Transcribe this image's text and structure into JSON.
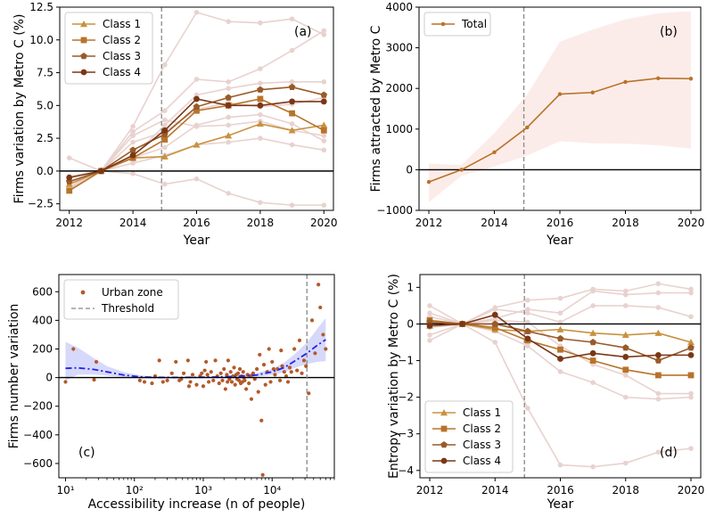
{
  "chart_data": [
    {
      "id": "a",
      "type": "line",
      "panel_label": "(a)",
      "xlabel": "Year",
      "ylabel": "Firms variation by Metro C (%)",
      "xlim": [
        2011.7,
        2020.3
      ],
      "ylim": [
        -3.0,
        12.5
      ],
      "x_ticks": [
        2012,
        2014,
        2016,
        2018,
        2020
      ],
      "y_ticks": [
        -2.5,
        0.0,
        2.5,
        5.0,
        7.5,
        10.0,
        12.5
      ],
      "y_tick_labels": [
        "−2.5",
        "0.0",
        "2.5",
        "5.0",
        "7.5",
        "10.0",
        "12.5"
      ],
      "threshold_x": 2014.9,
      "zero_line": true,
      "legend_position": "upper-left",
      "years": [
        2012,
        2013,
        2014,
        2015,
        2016,
        2017,
        2018,
        2019,
        2020
      ],
      "series": [
        {
          "name": "Class 1",
          "marker": "triangle",
          "color": "#c8923f",
          "values": [
            -1.0,
            0.0,
            1.0,
            1.1,
            2.0,
            2.7,
            3.6,
            3.1,
            3.5
          ]
        },
        {
          "name": "Class 2",
          "marker": "square",
          "color": "#b8732a",
          "values": [
            -1.5,
            0.0,
            1.0,
            2.4,
            4.6,
            5.0,
            5.5,
            4.4,
            3.1
          ]
        },
        {
          "name": "Class 3",
          "marker": "pentagon",
          "color": "#9a5a28",
          "values": [
            -0.8,
            0.0,
            1.6,
            2.8,
            4.9,
            5.6,
            6.2,
            6.4,
            5.8
          ]
        },
        {
          "name": "Class 4",
          "marker": "circle",
          "color": "#7a3715",
          "values": [
            -0.5,
            0.0,
            1.2,
            3.1,
            5.5,
            5.0,
            5.0,
            5.3,
            5.3
          ]
        }
      ],
      "background_series_color": "#e8d2cf",
      "background_series": [
        [
          -1.2,
          0.0,
          3.4,
          8.1,
          12.1,
          11.4,
          11.3,
          11.6,
          10.4
        ],
        [
          -1.4,
          0.0,
          3.0,
          4.6,
          7.0,
          6.8,
          7.8,
          9.2,
          10.7
        ],
        [
          1.0,
          0.0,
          1.1,
          3.5,
          5.8,
          6.3,
          6.7,
          6.8,
          6.8
        ],
        [
          -1.3,
          0.0,
          2.2,
          3.0,
          4.7,
          5.2,
          4.9,
          5.1,
          5.6
        ],
        [
          -0.9,
          0.0,
          1.0,
          1.8,
          3.5,
          4.1,
          4.3,
          3.6,
          2.3
        ],
        [
          -1.0,
          0.0,
          2.7,
          3.9,
          3.4,
          3.5,
          3.8,
          3.1,
          2.7
        ],
        [
          -0.5,
          0.0,
          0.6,
          1.2,
          2.0,
          2.2,
          2.5,
          2.0,
          1.6
        ],
        [
          -0.4,
          0.0,
          -0.2,
          -1.0,
          -0.6,
          -1.7,
          -2.4,
          -2.6,
          -2.6
        ]
      ]
    },
    {
      "id": "b",
      "type": "line",
      "panel_label": "(b)",
      "xlabel": "Year",
      "ylabel": "Firms attracted by Metro C",
      "xlim": [
        2011.7,
        2020.3
      ],
      "ylim": [
        -1000,
        4000
      ],
      "x_ticks": [
        2012,
        2014,
        2016,
        2018,
        2020
      ],
      "y_ticks": [
        -1000,
        0,
        1000,
        2000,
        3000,
        4000
      ],
      "y_tick_labels": [
        "−1000",
        "0",
        "1000",
        "2000",
        "3000",
        "4000"
      ],
      "threshold_x": 2014.9,
      "zero_line": true,
      "legend_position": "upper-left",
      "years": [
        2012,
        2013,
        2014,
        2015,
        2016,
        2017,
        2018,
        2019,
        2020
      ],
      "series": [
        {
          "name": "Total",
          "marker": "circle",
          "color": "#b8732a",
          "values": [
            -300,
            0,
            430,
            1040,
            1860,
            1900,
            2160,
            2250,
            2240
          ]
        }
      ],
      "band": {
        "color": "#fbe7e4",
        "lower": [
          -800,
          -150,
          80,
          350,
          700,
          650,
          640,
          600,
          520
        ],
        "upper": [
          150,
          120,
          900,
          1850,
          3150,
          3450,
          3700,
          3850,
          3900
        ]
      }
    },
    {
      "id": "c",
      "type": "scatter",
      "panel_label": "(c)",
      "xlabel": "Accessibility increase (n of people)",
      "ylabel": "Firms number variation",
      "x_scale": "log",
      "xlim": [
        8,
        80000
      ],
      "ylim": [
        -700,
        720
      ],
      "x_ticks": [
        10,
        100,
        1000,
        10000
      ],
      "x_tick_labels": [
        "10¹",
        "10²",
        "10³",
        "10⁴"
      ],
      "y_ticks": [
        -600,
        -400,
        -200,
        0,
        200,
        400,
        600
      ],
      "y_tick_labels": [
        "−600",
        "−400",
        "−200",
        "0",
        "200",
        "400",
        "600"
      ],
      "threshold_x": 32000,
      "zero_line": true,
      "legend_position": "upper-left",
      "legend": [
        "Urban zone",
        "Threshold"
      ],
      "point_color": "#b5592a",
      "fit_color": "#2222ee",
      "band_color": "#c9ccf8",
      "points": [
        [
          10,
          -30
        ],
        [
          13,
          200
        ],
        [
          26,
          -15
        ],
        [
          28,
          110
        ],
        [
          120,
          -20
        ],
        [
          140,
          -30
        ],
        [
          180,
          -40
        ],
        [
          200,
          10
        ],
        [
          230,
          120
        ],
        [
          260,
          -30
        ],
        [
          300,
          -20
        ],
        [
          350,
          30
        ],
        [
          400,
          110
        ],
        [
          450,
          -20
        ],
        [
          480,
          -10
        ],
        [
          520,
          30
        ],
        [
          600,
          120
        ],
        [
          650,
          -30
        ],
        [
          700,
          20
        ],
        [
          800,
          -50
        ],
        [
          900,
          10
        ],
        [
          950,
          30
        ],
        [
          1000,
          -60
        ],
        [
          1100,
          110
        ],
        [
          1150,
          20
        ],
        [
          1200,
          -30
        ],
        [
          1300,
          40
        ],
        [
          1400,
          -20
        ],
        [
          1500,
          120
        ],
        [
          1600,
          10
        ],
        [
          1700,
          -40
        ],
        [
          1800,
          30
        ],
        [
          1900,
          -20
        ],
        [
          2000,
          60
        ],
        [
          2100,
          -80
        ],
        [
          2200,
          20
        ],
        [
          2300,
          120
        ],
        [
          2400,
          -10
        ],
        [
          2500,
          40
        ],
        [
          2600,
          -30
        ],
        [
          2700,
          10
        ],
        [
          2800,
          70
        ],
        [
          2900,
          -50
        ],
        [
          3000,
          20
        ],
        [
          3100,
          -10
        ],
        [
          3200,
          30
        ],
        [
          3300,
          -20
        ],
        [
          3400,
          60
        ],
        [
          3500,
          -40
        ],
        [
          3600,
          10
        ],
        [
          3700,
          -30
        ],
        [
          3800,
          40
        ],
        [
          3900,
          0
        ],
        [
          4000,
          -20
        ],
        [
          4200,
          -80
        ],
        [
          4400,
          20
        ],
        [
          4600,
          -40
        ],
        [
          4800,
          10
        ],
        [
          5000,
          -150
        ],
        [
          5300,
          30
        ],
        [
          5600,
          -10
        ],
        [
          6000,
          60
        ],
        [
          6300,
          -100
        ],
        [
          6600,
          160
        ],
        [
          7000,
          -300
        ],
        [
          7300,
          -680
        ],
        [
          7600,
          90
        ],
        [
          8000,
          -50
        ],
        [
          8500,
          40
        ],
        [
          9000,
          200
        ],
        [
          9500,
          -30
        ],
        [
          10000,
          110
        ],
        [
          10500,
          60
        ],
        [
          11000,
          20
        ],
        [
          12000,
          60
        ],
        [
          13000,
          -20
        ],
        [
          14000,
          80
        ],
        [
          15000,
          40
        ],
        [
          16000,
          10
        ],
        [
          17000,
          -30
        ],
        [
          18000,
          70
        ],
        [
          19000,
          40
        ],
        [
          21000,
          200
        ],
        [
          23000,
          50
        ],
        [
          25000,
          260
        ],
        [
          27000,
          30
        ],
        [
          29000,
          120
        ],
        [
          31000,
          80
        ],
        [
          34000,
          -110
        ],
        [
          38000,
          400
        ],
        [
          42000,
          170
        ],
        [
          47000,
          650
        ],
        [
          50000,
          490
        ],
        [
          55000,
          300
        ],
        [
          60000,
          200
        ],
        [
          13500,
          190
        ],
        [
          5200,
          20
        ],
        [
          2250,
          -30
        ],
        [
          1050,
          50
        ],
        [
          620,
          -60
        ]
      ],
      "fit_x": [
        10,
        15,
        25,
        40,
        70,
        120,
        200,
        400,
        800,
        1500,
        3000,
        6000,
        10000,
        15000,
        22000,
        32000,
        45000,
        60000
      ],
      "fit_y": [
        65,
        68,
        58,
        40,
        18,
        5,
        1,
        1,
        2,
        4,
        8,
        18,
        40,
        70,
        120,
        170,
        225,
        265
      ],
      "band_lower": [
        -20,
        20,
        22,
        14,
        3,
        -6,
        -6,
        -4,
        -3,
        -2,
        0,
        5,
        18,
        38,
        70,
        95,
        110,
        115
      ],
      "band_upper": [
        250,
        210,
        140,
        80,
        38,
        16,
        8,
        6,
        7,
        10,
        17,
        32,
        62,
        105,
        170,
        245,
        340,
        415
      ]
    },
    {
      "id": "d",
      "type": "line",
      "panel_label": "(d)",
      "xlabel": "Year",
      "ylabel": "Entropy variation by Metro C (%)",
      "xlim": [
        2011.7,
        2020.3
      ],
      "ylim": [
        -4.2,
        1.35
      ],
      "x_ticks": [
        2012,
        2014,
        2016,
        2018,
        2020
      ],
      "y_ticks": [
        -4,
        -3,
        -2,
        -1,
        0,
        1
      ],
      "y_tick_labels": [
        "−4",
        "−3",
        "−2",
        "−1",
        "0",
        "1"
      ],
      "threshold_x": 2014.9,
      "zero_line": true,
      "legend_position": "lower-left",
      "years": [
        2012,
        2013,
        2014,
        2015,
        2016,
        2017,
        2018,
        2019,
        2020
      ],
      "series": [
        {
          "name": "Class 1",
          "marker": "triangle",
          "color": "#c8923f",
          "values": [
            -0.05,
            0.0,
            -0.15,
            -0.2,
            -0.15,
            -0.25,
            -0.3,
            -0.25,
            -0.5
          ]
        },
        {
          "name": "Class 2",
          "marker": "square",
          "color": "#b8732a",
          "values": [
            0.1,
            0.0,
            -0.1,
            -0.45,
            -0.7,
            -1.0,
            -1.25,
            -1.4,
            -1.4
          ]
        },
        {
          "name": "Class 3",
          "marker": "pentagon",
          "color": "#9a5a28",
          "values": [
            0.05,
            0.0,
            0.0,
            -0.2,
            -0.4,
            -0.5,
            -0.65,
            -1.0,
            -0.65
          ]
        },
        {
          "name": "Class 4",
          "marker": "circle",
          "color": "#7a3715",
          "values": [
            -0.05,
            0.0,
            0.25,
            -0.4,
            -0.95,
            -0.8,
            -0.9,
            -0.85,
            -0.85
          ]
        }
      ],
      "background_series_color": "#e8d2cf",
      "background_series": [
        [
          0.5,
          0.0,
          0.45,
          0.65,
          0.7,
          0.95,
          0.9,
          1.1,
          0.95
        ],
        [
          -0.3,
          0.0,
          0.15,
          0.4,
          0.3,
          0.9,
          0.8,
          0.85,
          0.85
        ],
        [
          0.3,
          0.0,
          0.4,
          0.3,
          0.05,
          0.5,
          0.5,
          0.45,
          0.2
        ],
        [
          -0.45,
          0.0,
          0.1,
          0.05,
          -0.6,
          -1.1,
          -1.4,
          -1.9,
          -1.9
        ],
        [
          0.2,
          0.0,
          -0.2,
          -0.6,
          -1.3,
          -1.6,
          -2.0,
          -2.05,
          -2.0
        ],
        [
          -0.1,
          0.0,
          -0.5,
          -2.3,
          -3.85,
          -3.9,
          -3.8,
          -3.5,
          -3.4
        ]
      ]
    }
  ]
}
